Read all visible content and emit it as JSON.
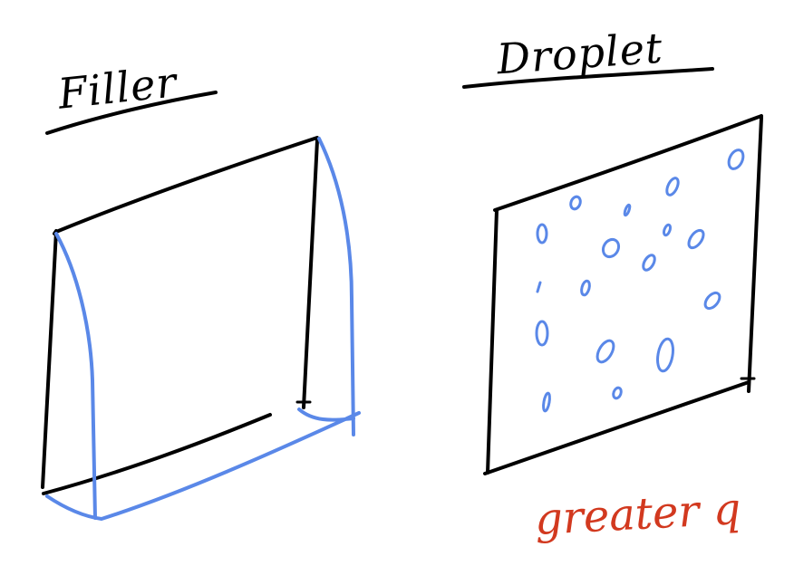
{
  "left_panel": {
    "title": "Filler"
  },
  "right_panel": {
    "title": "Droplet",
    "note": "greater q"
  },
  "colors": {
    "ink": "#000000",
    "blue": "#5a88e8",
    "red": "#d2391f"
  }
}
